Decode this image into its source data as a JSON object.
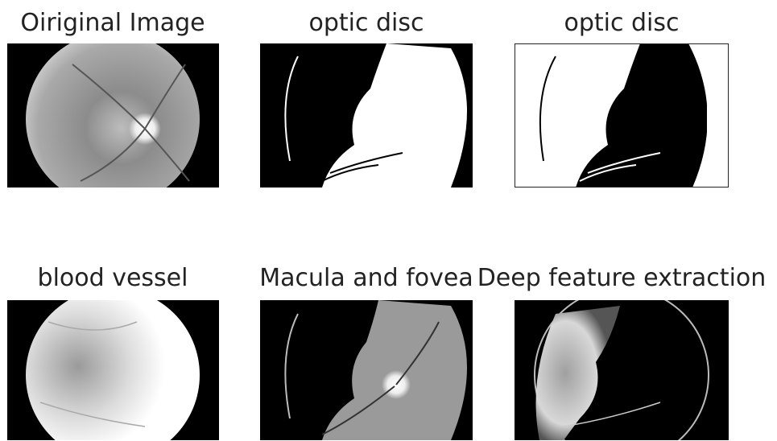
{
  "panels": [
    {
      "title": "Oiriginal Image"
    },
    {
      "title": "optic disc"
    },
    {
      "title": "optic disc"
    },
    {
      "title": "blood vessel"
    },
    {
      "title": "Macula and fovea"
    },
    {
      "title": "Deep feature extraction"
    }
  ]
}
